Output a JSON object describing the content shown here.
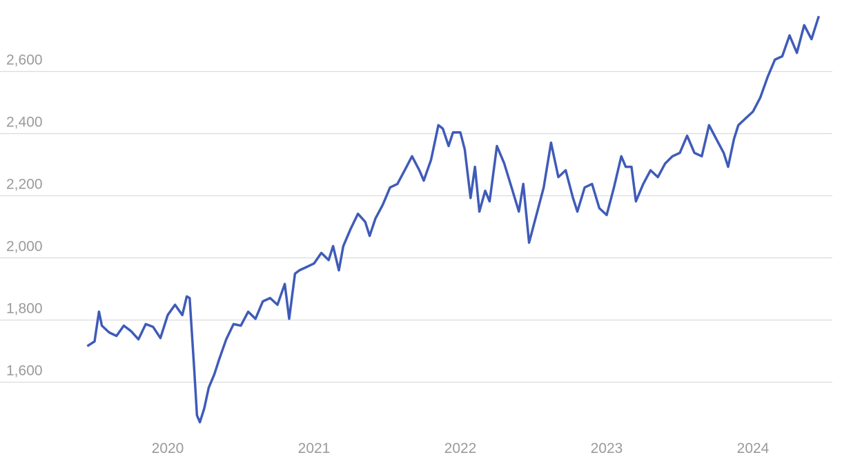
{
  "chart_data": {
    "type": "line",
    "x": [
      2019.45,
      2019.5,
      2019.53,
      2019.55,
      2019.6,
      2019.65,
      2019.7,
      2019.75,
      2019.8,
      2019.85,
      2019.9,
      2019.95,
      2020.0,
      2020.05,
      2020.1,
      2020.13,
      2020.15,
      2020.18,
      2020.2,
      2020.22,
      2020.25,
      2020.28,
      2020.32,
      2020.35,
      2020.4,
      2020.45,
      2020.5,
      2020.55,
      2020.6,
      2020.65,
      2020.7,
      2020.75,
      2020.8,
      2020.83,
      2020.87,
      2020.9,
      2020.95,
      2021.0,
      2021.05,
      2021.1,
      2021.13,
      2021.17,
      2021.2,
      2021.25,
      2021.3,
      2021.35,
      2021.38,
      2021.42,
      2021.47,
      2021.52,
      2021.57,
      2021.62,
      2021.67,
      2021.72,
      2021.75,
      2021.8,
      2021.85,
      2021.88,
      2021.92,
      2021.95,
      2022.0,
      2022.03,
      2022.07,
      2022.1,
      2022.13,
      2022.17,
      2022.2,
      2022.25,
      2022.3,
      2022.35,
      2022.4,
      2022.43,
      2022.47,
      2022.52,
      2022.57,
      2022.62,
      2022.67,
      2022.72,
      2022.77,
      2022.8,
      2022.85,
      2022.9,
      2022.95,
      2023.0,
      2023.05,
      2023.1,
      2023.13,
      2023.17,
      2023.2,
      2023.25,
      2023.3,
      2023.35,
      2023.4,
      2023.45,
      2023.5,
      2023.55,
      2023.6,
      2023.65,
      2023.7,
      2023.75,
      2023.8,
      2023.83,
      2023.87,
      2023.9,
      2023.95,
      2024.0,
      2024.05,
      2024.1,
      2024.15,
      2024.2,
      2024.25,
      2024.3,
      2024.35,
      2024.4,
      2024.45
    ],
    "values": [
      1716,
      1731,
      1827,
      1782,
      1760,
      1749,
      1782,
      1764,
      1738,
      1787,
      1778,
      1742,
      1816,
      1849,
      1816,
      1876,
      1871,
      1649,
      1493,
      1471,
      1516,
      1582,
      1627,
      1671,
      1738,
      1787,
      1782,
      1827,
      1804,
      1860,
      1871,
      1849,
      1916,
      1804,
      1949,
      1960,
      1971,
      1982,
      2016,
      1993,
      2038,
      1960,
      2038,
      2093,
      2142,
      2116,
      2071,
      2127,
      2171,
      2227,
      2238,
      2282,
      2327,
      2282,
      2249,
      2316,
      2427,
      2416,
      2360,
      2404,
      2404,
      2349,
      2193,
      2293,
      2149,
      2216,
      2182,
      2360,
      2304,
      2227,
      2149,
      2238,
      2049,
      2138,
      2227,
      2371,
      2260,
      2282,
      2193,
      2149,
      2227,
      2238,
      2160,
      2138,
      2227,
      2327,
      2293,
      2293,
      2182,
      2238,
      2282,
      2260,
      2304,
      2327,
      2338,
      2393,
      2338,
      2327,
      2427,
      2382,
      2338,
      2293,
      2382,
      2427,
      2449,
      2471,
      2516,
      2582,
      2638,
      2649,
      2716,
      2660,
      2749,
      2704,
      2778
    ],
    "color": "#3f5bb8",
    "xlim": [
      2019.4,
      2024.5
    ],
    "xticks": [
      2020,
      2021,
      2022,
      2023,
      2024
    ],
    "ylim": [
      1380,
      2830
    ],
    "yticks": [
      {
        "value": 1600,
        "label": "1,600"
      },
      {
        "value": 1800,
        "label": "1,800"
      },
      {
        "value": 2000,
        "label": "2,000"
      },
      {
        "value": 2200,
        "label": "2,200"
      },
      {
        "value": 2400,
        "label": "2,400"
      },
      {
        "value": 2600,
        "label": "2,600"
      }
    ],
    "grid": true
  }
}
